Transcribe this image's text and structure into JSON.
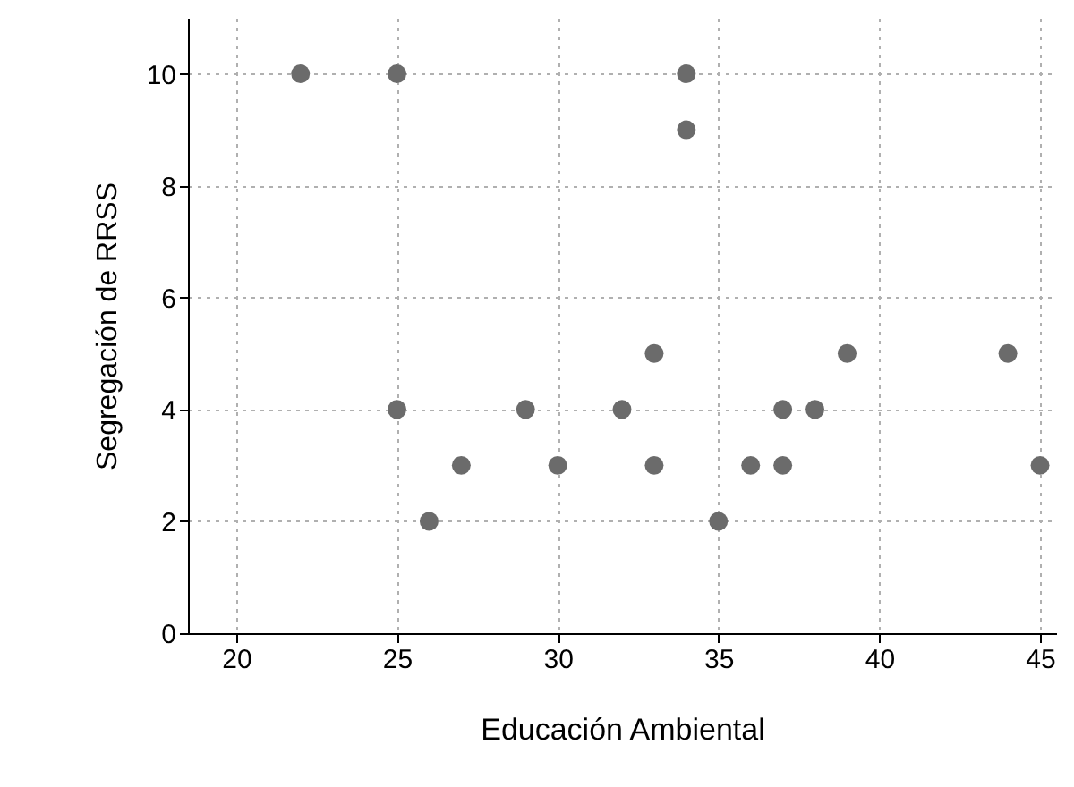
{
  "chart_data": {
    "type": "scatter",
    "xlabel": "Educación Ambiental",
    "ylabel": "Segregación de RRSS",
    "x": [
      22,
      25,
      34,
      34,
      25,
      29,
      32,
      33,
      33,
      27,
      30,
      26,
      35,
      36,
      37,
      37,
      38,
      39,
      44,
      45
    ],
    "values": [
      10,
      10,
      10,
      9,
      4,
      4,
      4,
      5,
      3,
      3,
      3,
      2,
      2,
      3,
      3,
      4,
      4,
      5,
      5,
      3
    ],
    "color": "#6b6b6b",
    "marker": "circle",
    "grid": true,
    "line_style": "dotted",
    "xlim": [
      18.5,
      45.5
    ],
    "xticks": [
      20,
      25,
      30,
      35,
      40,
      45
    ],
    "ylim": [
      0,
      11
    ],
    "yticks": [
      0,
      2,
      4,
      6,
      8,
      10
    ]
  }
}
